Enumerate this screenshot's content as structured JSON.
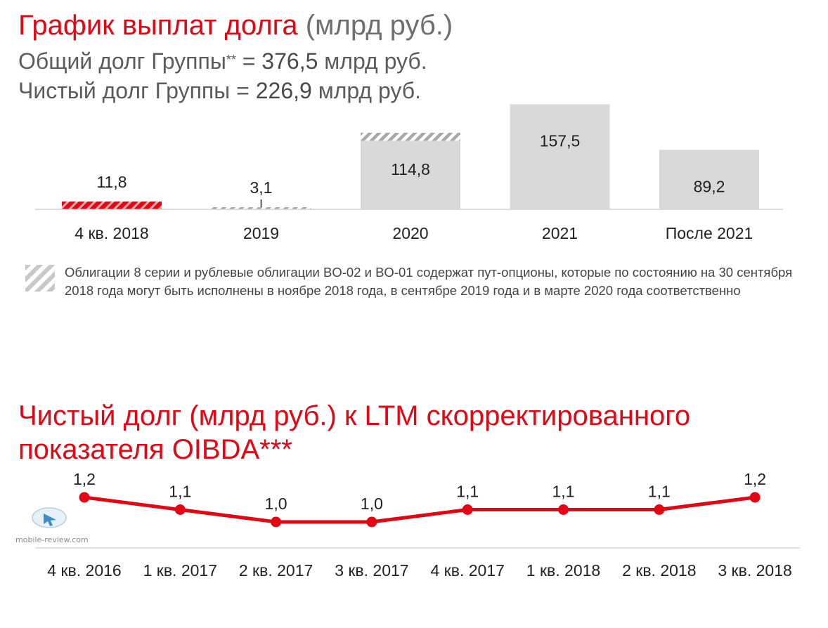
{
  "top": {
    "title_red": "График выплат долга",
    "title_gray": "(млрд руб.)",
    "gross_label": "Общий долг Группы",
    "gross_sup": "**",
    "gross_eq": " = ",
    "gross_value": "376,5",
    "gross_unit": " млрд руб.",
    "net_label": "Чистый долг Группы",
    "net_eq": " = ",
    "net_value": "226,9",
    "net_unit": " млрд руб."
  },
  "legend": {
    "note": "Облигации 8 серии и рублевые облигации BO-02 и BO-01 содержат пут-опционы, которые по состоянию на 30 сентября 2018 года могут быть исполнены в ноябре 2018 года, в сентябре 2019 года и в марте 2020 года соответственно"
  },
  "bottom": {
    "title_line1": "Чистый долг (млрд руб.) к LTM скорректированного",
    "title_line2": "показателя OIBDA***"
  },
  "watermark": "mobile-review.com",
  "colors": {
    "red": "#e30613",
    "bar_gray": "#d9d9d9",
    "hatch_gray": "#a8a8a8",
    "axis": "#d0d0d0"
  },
  "chart_data": [
    {
      "type": "bar",
      "title": "График выплат долга (млрд руб.)",
      "categories": [
        "4 кв. 2018",
        "2019",
        "2020",
        "2021",
        "После 2021"
      ],
      "values": [
        11.8,
        3.1,
        114.8,
        157.5,
        89.2
      ],
      "value_labels": [
        "11,8",
        "3,1",
        "114,8",
        "157,5",
        "89,2"
      ],
      "put_option_portion": [
        11.8,
        3.1,
        12.0,
        0,
        0
      ],
      "bar_colors": [
        "#e30613",
        "#d9d9d9",
        "#d9d9d9",
        "#d9d9d9",
        "#d9d9d9"
      ],
      "ylim": [
        0,
        160
      ],
      "grid": false,
      "legend": "bottom-left"
    },
    {
      "type": "line",
      "title": "Чистый долг (млрд руб.) к LTM скорректированного показателя OIBDA***",
      "categories": [
        "4 кв. 2016",
        "1 кв. 2017",
        "2 кв. 2017",
        "3 кв. 2017",
        "4 кв. 2017",
        "1 кв. 2018",
        "2 кв. 2018",
        "3 кв. 2018"
      ],
      "values": [
        1.2,
        1.1,
        1.0,
        1.0,
        1.1,
        1.1,
        1.1,
        1.2
      ],
      "value_labels": [
        "1,2",
        "1,1",
        "1,0",
        "1,0",
        "1,1",
        "1,1",
        "1,1",
        "1,2"
      ],
      "color": "#e30613",
      "ylim": [
        0.8,
        1.3
      ],
      "grid": false
    }
  ]
}
